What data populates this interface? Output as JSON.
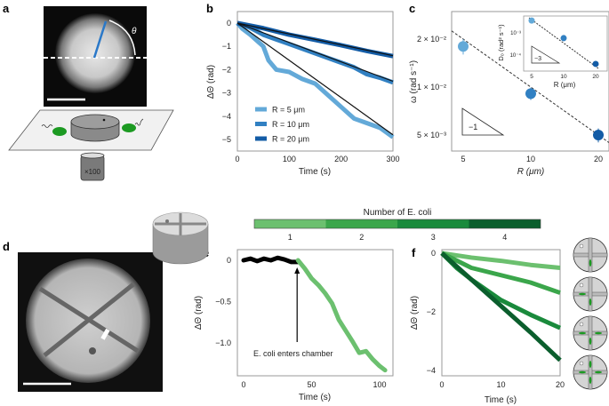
{
  "panel_labels": [
    "a",
    "b",
    "c",
    "d",
    "e",
    "f"
  ],
  "panel_a": {
    "angle_symbol": "θ",
    "objective_label": "×100"
  },
  "chart_data": [
    {
      "panel": "b",
      "type": "line",
      "xlabel": "Time (s)",
      "ylabel": "ΔΘ (rad)",
      "xlim": [
        0,
        300
      ],
      "ylim": [
        -5.5,
        0.3
      ],
      "xticks": [
        0,
        100,
        200,
        300
      ],
      "yticks": [
        0,
        -1,
        -2,
        -3,
        -4,
        -5
      ],
      "legend_placement": "bottom-left",
      "series": [
        {
          "name": "R = 5 μm",
          "color": "#63a9d8",
          "x": [
            0,
            10,
            25,
            40,
            50,
            60,
            75,
            100,
            125,
            150,
            175,
            200,
            225,
            250,
            275,
            300
          ],
          "y": [
            0,
            -0.25,
            -0.5,
            -0.8,
            -1.0,
            -1.6,
            -2.0,
            -2.1,
            -2.4,
            -2.6,
            -3.1,
            -3.6,
            -4.1,
            -4.3,
            -4.5,
            -4.9
          ],
          "fit_end": -4.8
        },
        {
          "name": "R = 10 μm",
          "color": "#3180c2",
          "x": [
            0,
            25,
            50,
            75,
            100,
            125,
            150,
            175,
            200,
            225,
            250,
            275,
            300
          ],
          "y": [
            0,
            -0.2,
            -0.5,
            -0.7,
            -0.9,
            -1.1,
            -1.3,
            -1.5,
            -1.7,
            -1.9,
            -2.2,
            -2.35,
            -2.55
          ],
          "fit_end": -2.5
        },
        {
          "name": "R = 20 μm",
          "color": "#135ca6",
          "x": [
            0,
            50,
            100,
            150,
            200,
            250,
            300
          ],
          "y": [
            0,
            -0.22,
            -0.5,
            -0.72,
            -0.95,
            -1.2,
            -1.42
          ],
          "fit_end": -1.4
        }
      ]
    },
    {
      "panel": "c",
      "type": "scatter",
      "xlabel": "R (μm)",
      "ylabel": "ω (rad s⁻¹)",
      "xscale": "log",
      "yscale": "log",
      "xticks": [
        5,
        10,
        20
      ],
      "yticks": [
        0.02,
        0.01,
        0.005
      ],
      "ytick_labels": [
        "2 × 10⁻²",
        "1 × 10⁻²",
        "5 × 10⁻³"
      ],
      "x": [
        5,
        10,
        20
      ],
      "y": [
        0.018,
        0.0091,
        0.005
      ],
      "yerr": [
        0.002,
        0.0008,
        0.0005
      ],
      "colors": [
        "#63a9d8",
        "#3180c2",
        "#135ca6"
      ],
      "slope_label": "−1",
      "inset": {
        "xlabel": "R (μm)",
        "ylabel": "D₀ (rad² s⁻¹)",
        "xticks": [
          5,
          10,
          20
        ],
        "yticks": [
          0.001,
          0.0001
        ],
        "ytick_labels": [
          "10⁻³",
          "10⁻⁴"
        ],
        "x": [
          5,
          10,
          20
        ],
        "y": [
          0.0036,
          0.00058,
          4e-05
        ],
        "slope_label": "−3"
      }
    },
    {
      "panel": "colorbar",
      "type": "colorbar",
      "title": "Number of E. coli",
      "ticks": [
        1,
        2,
        3,
        4
      ],
      "colors": [
        "#6cc06f",
        "#3ba64b",
        "#1a8a3c",
        "#0b5e2d"
      ]
    },
    {
      "panel": "e",
      "type": "line",
      "xlabel": "Time (s)",
      "ylabel": "ΔΘ (rad)",
      "xlim": [
        -5,
        110
      ],
      "ylim": [
        -1.45,
        0.15
      ],
      "xticks": [
        0,
        50,
        100
      ],
      "yticks": [
        0,
        -0.5,
        -1.0
      ],
      "ytick_labels": [
        "0",
        "−0.5",
        "−1.0"
      ],
      "series": [
        {
          "color": "#000000",
          "x": [
            0,
            5,
            10,
            15,
            20,
            25,
            30,
            35,
            40
          ],
          "y": [
            0,
            0.02,
            -0.01,
            0.02,
            0,
            0.03,
            0.01,
            -0.02,
            -0.02
          ]
        },
        {
          "color": "#6cc06f",
          "x": [
            40,
            45,
            50,
            55,
            60,
            65,
            70,
            75,
            80,
            85,
            90,
            95,
            100,
            104
          ],
          "y": [
            0,
            -0.1,
            -0.22,
            -0.3,
            -0.4,
            -0.52,
            -0.72,
            -0.85,
            -0.98,
            -1.12,
            -1.1,
            -1.2,
            -1.28,
            -1.33
          ]
        }
      ],
      "annotation": "E. coli enters chamber",
      "annotation_x": 40
    },
    {
      "panel": "f",
      "type": "line",
      "xlabel": "Time (s)",
      "ylabel": "ΔΘ (rad)",
      "xlim": [
        0,
        20
      ],
      "ylim": [
        -4.2,
        0.1
      ],
      "xticks": [
        0,
        10,
        20
      ],
      "yticks": [
        0,
        -2,
        -4
      ],
      "series": [
        {
          "color": "#6cc06f",
          "x": [
            0,
            5,
            10,
            15,
            20
          ],
          "y": [
            0,
            -0.15,
            -0.26,
            -0.4,
            -0.5
          ]
        },
        {
          "color": "#3ba64b",
          "x": [
            0,
            2.5,
            5,
            10,
            15,
            20
          ],
          "y": [
            0,
            -0.25,
            -0.5,
            -0.75,
            -1.0,
            -1.35
          ]
        },
        {
          "color": "#1a8a3c",
          "x": [
            0,
            2.5,
            5,
            10,
            15,
            20
          ],
          "y": [
            0,
            -0.5,
            -0.9,
            -1.6,
            -2.1,
            -2.55
          ]
        },
        {
          "color": "#0b5e2d",
          "x": [
            0,
            5,
            10,
            15,
            20
          ],
          "y": [
            0,
            -0.9,
            -1.8,
            -2.7,
            -3.65
          ]
        }
      ],
      "icons_bacteria_count": [
        1,
        2,
        3,
        4
      ]
    }
  ]
}
